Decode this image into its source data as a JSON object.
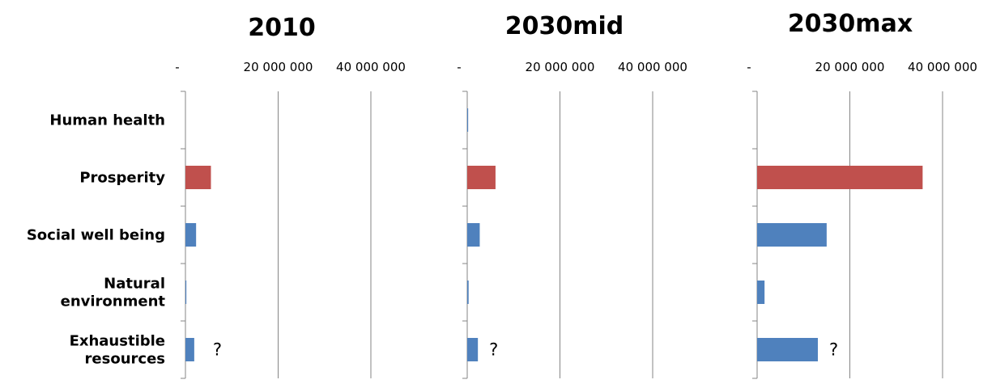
{
  "chart_data": {
    "type": "bar",
    "orientation": "horizontal",
    "categories": [
      "Human health",
      "Prosperity",
      "Social well being",
      "Natural environment",
      "Exhaustible resources"
    ],
    "category_lines": [
      [
        "Human health"
      ],
      [
        "Prosperity"
      ],
      [
        "Social well being"
      ],
      [
        "Natural",
        "environment"
      ],
      [
        "Exhaustible",
        "resources"
      ]
    ],
    "colors": {
      "red": "#c0504d",
      "blue": "#4f81bd"
    },
    "bar_colors": [
      "#4f81bd",
      "#c0504d",
      "#4f81bd",
      "#4f81bd",
      "#4f81bd"
    ],
    "grid": true,
    "panels": [
      {
        "title": "2010",
        "xlim": [
          0,
          40000000
        ],
        "tick_labels": [
          "-",
          "20 000 000",
          "40 000 000"
        ],
        "values": [
          0,
          5500000,
          2300000,
          200000,
          1900000
        ],
        "annotations": [
          {
            "category": "Exhaustible resources",
            "text": "?"
          }
        ]
      },
      {
        "title": "2030mid",
        "xlim": [
          0,
          40000000
        ],
        "tick_labels": [
          "-",
          "20 000 000",
          "40 000 000"
        ],
        "values": [
          200000,
          6100000,
          2700000,
          300000,
          2300000
        ],
        "annotations": [
          {
            "category": "Exhaustible resources",
            "text": "?"
          }
        ]
      },
      {
        "title": "2030max",
        "xlim": [
          0,
          40000000
        ],
        "tick_labels": [
          "-",
          "20 000 000",
          "40 000 000"
        ],
        "values": [
          0,
          35700000,
          15000000,
          1600000,
          13100000
        ],
        "annotations": [
          {
            "category": "Exhaustible resources",
            "text": "?"
          }
        ]
      }
    ]
  }
}
